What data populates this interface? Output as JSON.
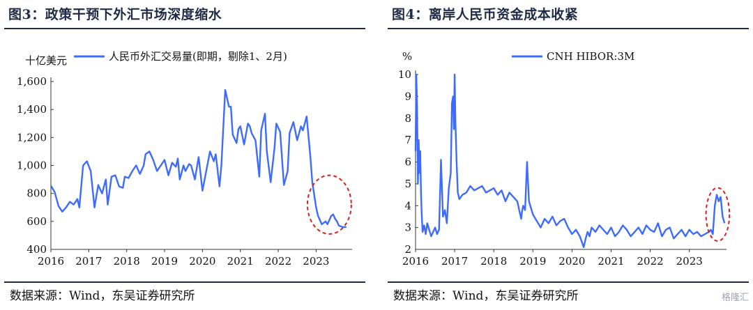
{
  "left": {
    "title": "图3：政策干预下外汇市场深度缩水",
    "source": "数据来源：Wind，东吴证券研究所",
    "chart_data": {
      "type": "line",
      "ylabel": "十亿美元",
      "ylim": [
        400,
        1600
      ],
      "yticks": [
        "400",
        "600",
        "800",
        "1,000",
        "1,200",
        "1,400",
        "1,600"
      ],
      "ytick_values": [
        400,
        600,
        800,
        1000,
        1200,
        1400,
        1600
      ],
      "xlim": [
        2016,
        2023.95
      ],
      "xticks": [
        "2016",
        "2017",
        "2018",
        "2019",
        "2020",
        "2021",
        "2022",
        "2023"
      ],
      "xtick_values": [
        2016,
        2017,
        2018,
        2019,
        2020,
        2021,
        2022,
        2023
      ],
      "grid": false,
      "legend_position": "top",
      "color": "#3d6bff",
      "highlight_color": "#d92020",
      "series": [
        {
          "name": "人民币外汇交易量(即期，剔除1、2月)",
          "x": [
            2016.0,
            2016.1,
            2016.2,
            2016.3,
            2016.4,
            2016.5,
            2016.6,
            2016.7,
            2016.75,
            2016.85,
            2016.95,
            2017.05,
            2017.15,
            2017.25,
            2017.35,
            2017.45,
            2017.5,
            2017.6,
            2017.7,
            2017.8,
            2017.9,
            2017.95,
            2018.05,
            2018.15,
            2018.25,
            2018.35,
            2018.45,
            2018.5,
            2018.6,
            2018.7,
            2018.8,
            2018.9,
            2019.0,
            2019.1,
            2019.2,
            2019.3,
            2019.35,
            2019.4,
            2019.5,
            2019.55,
            2019.65,
            2019.7,
            2019.8,
            2019.9,
            2020.0,
            2020.1,
            2020.2,
            2020.3,
            2020.35,
            2020.45,
            2020.5,
            2020.6,
            2020.7,
            2020.75,
            2020.8,
            2020.9,
            2020.95,
            2021.0,
            2021.1,
            2021.2,
            2021.25,
            2021.3,
            2021.4,
            2021.5,
            2021.55,
            2021.65,
            2021.7,
            2021.8,
            2021.9,
            2021.95,
            2022.05,
            2022.15,
            2022.25,
            2022.3,
            2022.4,
            2022.5,
            2022.6,
            2022.65,
            2022.75,
            2022.85,
            2022.9,
            2023.0,
            2023.05,
            2023.15,
            2023.25,
            2023.3,
            2023.4,
            2023.45,
            2023.5,
            2023.55,
            2023.6,
            2023.7,
            2023.75,
            2023.8
          ],
          "values": [
            855,
            810,
            710,
            670,
            700,
            740,
            720,
            760,
            700,
            1000,
            1030,
            960,
            700,
            860,
            800,
            900,
            720,
            920,
            930,
            850,
            840,
            920,
            910,
            960,
            1000,
            940,
            1000,
            1080,
            1100,
            1040,
            960,
            1000,
            1040,
            930,
            1020,
            990,
            1050,
            900,
            1000,
            960,
            1010,
            1000,
            900,
            1060,
            820,
            960,
            1100,
            1030,
            1080,
            850,
            1000,
            1540,
            1420,
            1420,
            1220,
            1160,
            1260,
            1280,
            1150,
            1300,
            1280,
            1230,
            1180,
            920,
            1250,
            1370,
            1100,
            880,
            1120,
            1300,
            1240,
            860,
            960,
            1230,
            1310,
            1180,
            1280,
            1250,
            1350,
            1060,
            880,
            700,
            640,
            580,
            600,
            580,
            640,
            650,
            620,
            600,
            570,
            560,
            560,
            560
          ],
          "highlight_from_index": 80
        }
      ]
    }
  },
  "right": {
    "title": "图4：离岸人民币资金成本收紧",
    "source": "数据来源：Wind，东吴证券研究所",
    "watermark": "格隆汇",
    "chart_data": {
      "type": "line",
      "ylabel": "%",
      "ylim": [
        2,
        10
      ],
      "yticks": [
        "2",
        "3",
        "4",
        "5",
        "6",
        "7",
        "8",
        "9",
        "10"
      ],
      "ytick_values": [
        2,
        3,
        4,
        5,
        6,
        7,
        8,
        9,
        10
      ],
      "xlim": [
        2016,
        2023.95
      ],
      "xticks": [
        "2016",
        "2017",
        "2018",
        "2019",
        "2020",
        "2021",
        "2022",
        "2023"
      ],
      "xtick_values": [
        2016,
        2017,
        2018,
        2019,
        2020,
        2021,
        2022,
        2023
      ],
      "grid": false,
      "legend_position": "top",
      "color": "#3d6bff",
      "highlight_color": "#d92020",
      "series": [
        {
          "name": "CNH HIBOR:3M",
          "x": [
            2016.0,
            2016.02,
            2016.04,
            2016.06,
            2016.08,
            2016.1,
            2016.12,
            2016.14,
            2016.16,
            2016.18,
            2016.22,
            2016.26,
            2016.3,
            2016.35,
            2016.4,
            2016.45,
            2016.5,
            2016.55,
            2016.6,
            2016.65,
            2016.7,
            2016.75,
            2016.8,
            2016.85,
            2016.9,
            2016.93,
            2016.96,
            2016.98,
            2017.0,
            2017.02,
            2017.05,
            2017.08,
            2017.12,
            2017.2,
            2017.3,
            2017.4,
            2017.5,
            2017.6,
            2017.7,
            2017.8,
            2017.9,
            2018.0,
            2018.1,
            2018.2,
            2018.3,
            2018.4,
            2018.5,
            2018.6,
            2018.7,
            2018.72,
            2018.75,
            2018.8,
            2018.85,
            2018.9,
            2019.0,
            2019.1,
            2019.2,
            2019.3,
            2019.4,
            2019.5,
            2019.6,
            2019.7,
            2019.8,
            2019.9,
            2020.0,
            2020.1,
            2020.2,
            2020.3,
            2020.35,
            2020.4,
            2020.45,
            2020.5,
            2020.6,
            2020.7,
            2020.8,
            2020.9,
            2021.0,
            2021.1,
            2021.2,
            2021.3,
            2021.4,
            2021.5,
            2021.6,
            2021.7,
            2021.8,
            2021.9,
            2022.0,
            2022.1,
            2022.2,
            2022.3,
            2022.4,
            2022.5,
            2022.6,
            2022.7,
            2022.8,
            2022.9,
            2023.0,
            2023.1,
            2023.2,
            2023.3,
            2023.4,
            2023.5,
            2023.55,
            2023.6,
            2023.65,
            2023.7,
            2023.75,
            2023.8,
            2023.85,
            2023.9
          ],
          "values": [
            6.5,
            10,
            8.5,
            5,
            7,
            5.5,
            6.5,
            4.5,
            3.5,
            2.8,
            3.1,
            2.7,
            3.2,
            2.9,
            2.6,
            2.8,
            3.0,
            2.7,
            2.9,
            6.1,
            3.5,
            3.8,
            3.2,
            4.8,
            5.5,
            8.7,
            9.0,
            7.5,
            10,
            7.8,
            6.0,
            4.6,
            4.3,
            4.5,
            4.6,
            4.9,
            4.7,
            4.8,
            4.9,
            4.6,
            4.7,
            4.8,
            4.5,
            4.7,
            4.2,
            4.6,
            4.4,
            4.2,
            3.4,
            3.7,
            4.0,
            3.8,
            6.0,
            4.2,
            3.6,
            3.3,
            3.0,
            3.4,
            3.2,
            3.5,
            3.1,
            3.3,
            3.4,
            3.0,
            2.7,
            2.9,
            2.6,
            2.1,
            2.5,
            2.8,
            2.6,
            3.0,
            2.8,
            3.1,
            2.9,
            2.7,
            3.0,
            2.6,
            2.8,
            3.1,
            2.9,
            2.6,
            2.8,
            3.0,
            2.7,
            3.1,
            2.9,
            2.8,
            3.2,
            2.6,
            2.9,
            3.0,
            2.5,
            2.7,
            2.9,
            2.6,
            2.9,
            2.7,
            2.8,
            2.6,
            2.7,
            2.8,
            2.9,
            2.7,
            4.0,
            4.5,
            4.2,
            4.4,
            3.5,
            3.2
          ],
          "highlight_from_index": 102
        }
      ]
    }
  }
}
